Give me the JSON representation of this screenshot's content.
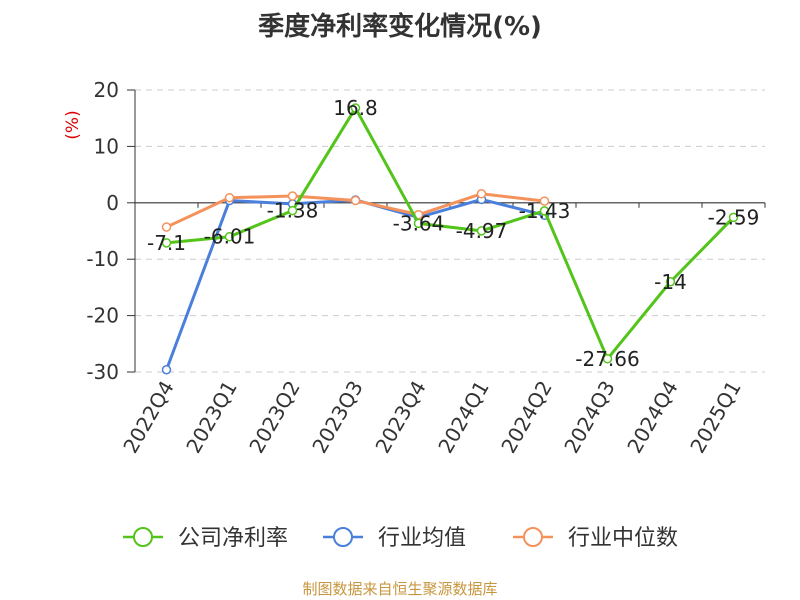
{
  "chart_data": {
    "type": "line",
    "title": "季度净利率变化情况(%)",
    "ylabel": "(%)",
    "xlabel": "",
    "ylim": [
      -30,
      20
    ],
    "yticks": [
      20,
      10,
      0,
      -10,
      -20,
      -30
    ],
    "grid": true,
    "legend_position": "bottom",
    "categories": [
      "2022Q4",
      "2023Q1",
      "2023Q2",
      "2023Q3",
      "2023Q4",
      "2024Q1",
      "2024Q2",
      "2024Q3",
      "2024Q4",
      "2025Q1"
    ],
    "series": [
      {
        "name": "公司净利率",
        "color": "#52c41a",
        "values": [
          -7.1,
          -6.01,
          -1.38,
          16.8,
          -3.64,
          -4.97,
          -1.43,
          -27.66,
          -14,
          -2.59
        ],
        "labels": [
          "-7.1",
          "-6.01",
          "-1.38",
          "16.8",
          "-3.64",
          "-4.97",
          "-1.43",
          "-27.66",
          "-14",
          "-2.59"
        ]
      },
      {
        "name": "行业均值",
        "color": "#4a7fdb",
        "values": [
          -29.6,
          0.4,
          -0.2,
          0.5,
          -2.6,
          0.6,
          -2.2,
          null,
          null,
          null
        ]
      },
      {
        "name": "行业中位数",
        "color": "#f5915b",
        "values": [
          -4.3,
          0.9,
          1.2,
          0.4,
          -2.1,
          1.6,
          0.3,
          null,
          null,
          null
        ]
      }
    ]
  },
  "source_note": "制图数据来自恒生聚源数据库"
}
